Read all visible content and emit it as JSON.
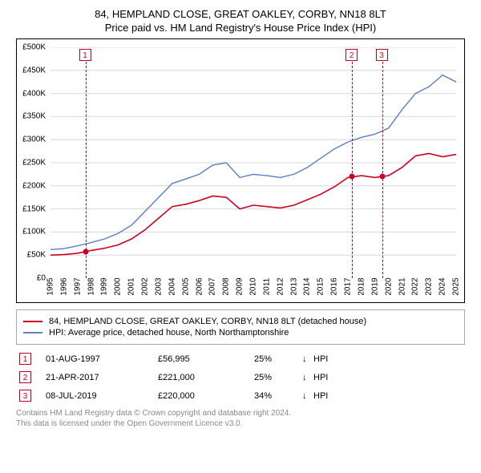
{
  "title_line1": "84, HEMPLAND CLOSE, GREAT OAKLEY, CORBY, NN18 8LT",
  "title_line2": "Price paid vs. HM Land Registry's House Price Index (HPI)",
  "chart": {
    "type": "line",
    "background_color": "#ffffff",
    "grid_color": "#d8d8d8",
    "axis_color": "#000000",
    "tick_fontsize": 10,
    "ylim": [
      0,
      500000
    ],
    "ytick_step": 50000,
    "ytick_labels": [
      "£0",
      "£50K",
      "£100K",
      "£150K",
      "£200K",
      "£250K",
      "£300K",
      "£350K",
      "£400K",
      "£450K",
      "£500K"
    ],
    "xlim": [
      1995,
      2025
    ],
    "xtick_step": 1,
    "xtick_labels": [
      "1995",
      "1996",
      "1997",
      "1998",
      "1999",
      "2000",
      "2001",
      "2002",
      "2003",
      "2004",
      "2005",
      "2006",
      "2007",
      "2008",
      "2009",
      "2010",
      "2011",
      "2012",
      "2013",
      "2014",
      "2015",
      "2016",
      "2017",
      "2018",
      "2019",
      "2020",
      "2021",
      "2022",
      "2023",
      "2024",
      "2025"
    ],
    "series": [
      {
        "name": "price_paid",
        "color": "#cc0022",
        "line_width": 1.6,
        "x": [
          1995,
          1996,
          1997,
          1998,
          1999,
          2000,
          2001,
          2002,
          2003,
          2004,
          2005,
          2006,
          2007,
          2008,
          2009,
          2010,
          2011,
          2012,
          2013,
          2014,
          2015,
          2016,
          2017,
          2018,
          2019,
          2020,
          2021,
          2022,
          2023,
          2024,
          2025
        ],
        "y": [
          50000,
          51000,
          54000,
          60000,
          65000,
          72000,
          85000,
          105000,
          130000,
          155000,
          160000,
          168000,
          178000,
          175000,
          150000,
          158000,
          155000,
          152000,
          158000,
          170000,
          182000,
          198000,
          218000,
          222000,
          218000,
          222000,
          240000,
          265000,
          270000,
          263000,
          268000
        ]
      },
      {
        "name": "hpi",
        "color": "#5b7fbf",
        "line_width": 1.4,
        "x": [
          1995,
          1996,
          1997,
          1998,
          1999,
          2000,
          2001,
          2002,
          2003,
          2004,
          2005,
          2006,
          2007,
          2008,
          2009,
          2010,
          2011,
          2012,
          2013,
          2014,
          2015,
          2016,
          2017,
          2018,
          2019,
          2020,
          2021,
          2022,
          2023,
          2024,
          2025
        ],
        "y": [
          62000,
          64000,
          70000,
          77000,
          85000,
          97000,
          115000,
          145000,
          175000,
          205000,
          215000,
          225000,
          245000,
          250000,
          218000,
          225000,
          222000,
          218000,
          225000,
          240000,
          260000,
          280000,
          295000,
          305000,
          312000,
          325000,
          365000,
          400000,
          415000,
          440000,
          425000
        ]
      }
    ],
    "sale_markers": [
      {
        "n": "1",
        "x": 1997.58,
        "y": 56995
      },
      {
        "n": "2",
        "x": 2017.3,
        "y": 221000
      },
      {
        "n": "3",
        "x": 2019.52,
        "y": 220000
      }
    ],
    "marker_color": "#c00020",
    "point_fill": "#cc0022"
  },
  "legend": {
    "border_color": "#aaaaaa",
    "items": [
      {
        "color": "#cc0022",
        "label": "84, HEMPLAND CLOSE, GREAT OAKLEY, CORBY, NN18 8LT (detached house)"
      },
      {
        "color": "#5b7fbf",
        "label": "HPI: Average price, detached house, North Northamptonshire"
      }
    ]
  },
  "sales": [
    {
      "n": "1",
      "date": "01-AUG-1997",
      "price": "£56,995",
      "pct": "25%",
      "arrow": "↓",
      "suffix": "HPI"
    },
    {
      "n": "2",
      "date": "21-APR-2017",
      "price": "£221,000",
      "pct": "25%",
      "arrow": "↓",
      "suffix": "HPI"
    },
    {
      "n": "3",
      "date": "08-JUL-2019",
      "price": "£220,000",
      "pct": "34%",
      "arrow": "↓",
      "suffix": "HPI"
    }
  ],
  "footer_line1": "Contains HM Land Registry data © Crown copyright and database right 2024.",
  "footer_line2": "This data is licensed under the Open Government Licence v3.0."
}
